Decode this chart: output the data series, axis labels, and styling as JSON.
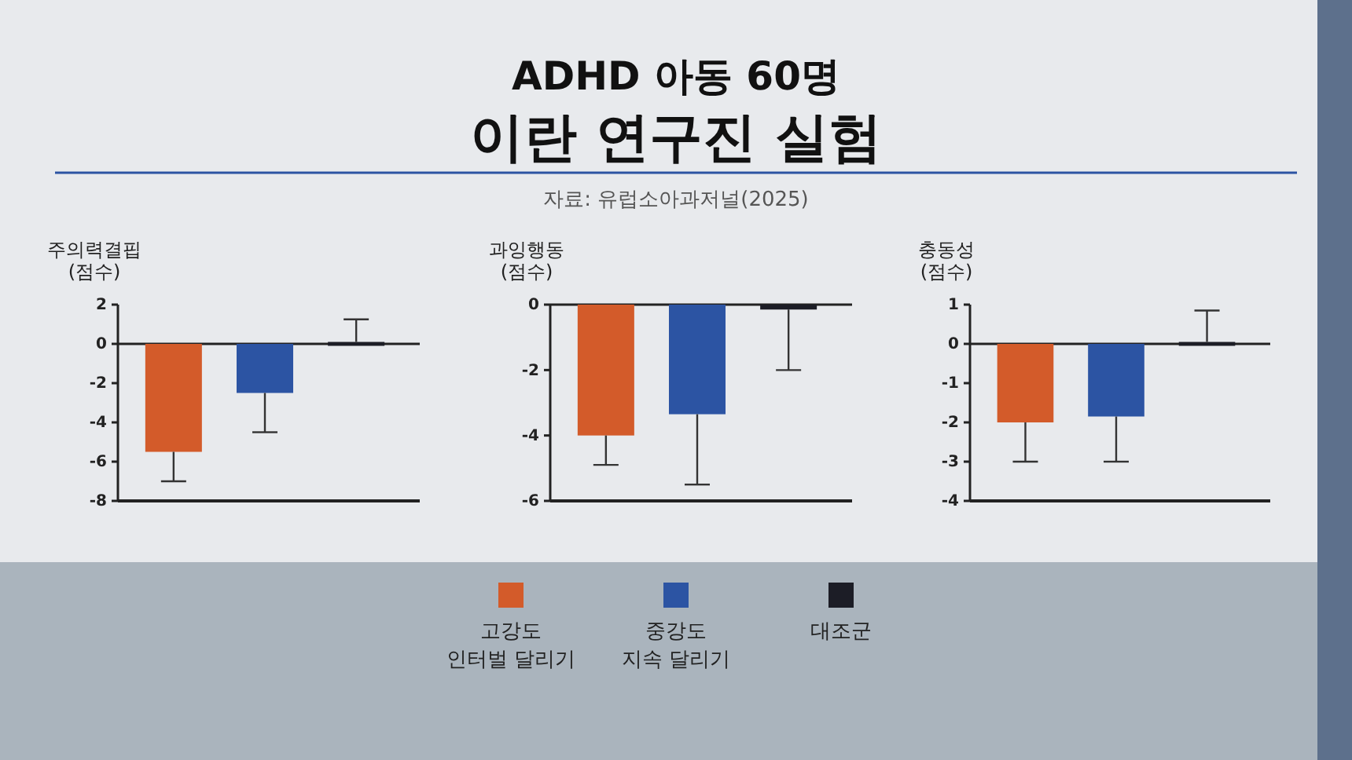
{
  "chart_data": [
    {
      "type": "bar",
      "ylabel": "주의력결핍\n(점수)",
      "categories": [
        null
      ],
      "ylim": [
        -8,
        2
      ],
      "yticks": [
        -8,
        -6,
        -4,
        -2,
        0,
        2
      ],
      "tick_labels": "y",
      "legend": "bottom",
      "series": [
        {
          "name": "고강도\n인터벌 달리기",
          "color": "#d35b2a",
          "values": [
            -5.5
          ],
          "errors": [
            [
              -7,
              -5.5
            ]
          ]
        },
        {
          "name": "중강도\n지속 달리기",
          "color": "#2c54a3",
          "values": [
            -2.5
          ],
          "errors": [
            [
              -4.5,
              -2.5
            ]
          ]
        },
        {
          "name": "대조군",
          "color": "#1c1d26",
          "values": [
            0.1
          ],
          "errors": [
            [
              0.1,
              1.25
            ]
          ]
        }
      ]
    },
    {
      "type": "bar",
      "title": "ADHD 아동 60명",
      "subtitle": "이란 연구진 실험",
      "annotations": [
        "자료: 유럽소아과저널(2025)"
      ],
      "ylabel": "과잉행동\n(점수)",
      "categories": [
        null
      ],
      "ylim": [
        -6,
        0
      ],
      "yticks": [
        -6,
        -4,
        -2,
        0
      ],
      "tick_labels": "y",
      "series": [
        {
          "color": "#d35b2a",
          "values": [
            -4
          ],
          "errors": [
            [
              -4.9,
              -4
            ]
          ]
        },
        {
          "color": "#2c54a3",
          "values": [
            -3.35
          ],
          "errors": [
            [
              -5.5,
              -3.35
            ]
          ]
        },
        {
          "color": "#1c1d26",
          "values": [
            -0.15
          ],
          "errors": [
            [
              -2,
              -0.15
            ]
          ]
        }
      ]
    },
    {
      "type": "bar",
      "ylabel": "충동성\n(점수)",
      "categories": [
        null
      ],
      "ylim": [
        -4,
        1
      ],
      "yticks": [
        -4,
        -3,
        -2,
        -1,
        0,
        1
      ],
      "tick_labels": "y",
      "series": [
        {
          "color": "#d35b2a",
          "values": [
            -2
          ],
          "errors": [
            [
              -3,
              -2
            ]
          ]
        },
        {
          "color": "#2c54a3",
          "values": [
            -1.85
          ],
          "errors": [
            [
              -3,
              -1.85
            ]
          ]
        },
        {
          "color": "#1c1d26",
          "values": [
            0.05
          ],
          "errors": [
            [
              0.05,
              0.85
            ]
          ]
        }
      ]
    }
  ]
}
